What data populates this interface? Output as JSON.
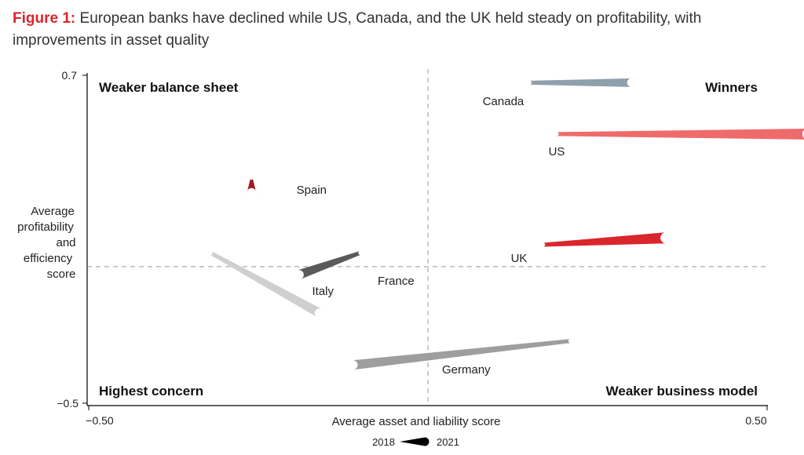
{
  "figure": {
    "prefix": "Figure 1:",
    "title": "European banks have declined while US, Canada, and the UK held steady on profitability, with improvements in asset quality"
  },
  "chart_data": {
    "type": "scatter",
    "subtype": "tapered-trajectory",
    "xlabel": "Average asset and liability score",
    "ylabel": "Average profitability and efficiency score",
    "ylabel_lines": [
      "Average",
      "profitability",
      "and",
      "efficiency",
      "score"
    ],
    "xlim": [
      -0.5,
      0.5
    ],
    "ylim": [
      -0.5,
      0.7
    ],
    "x_tick_labels": [
      "−0.50",
      "0.50"
    ],
    "y_tick_labels": [
      "0.7",
      "−0.5"
    ],
    "divider_x": 0.0,
    "divider_y": 0.0,
    "grid": false,
    "quadrants": {
      "top_left": "Weaker balance sheet",
      "top_right": "Winners",
      "bottom_left": "Highest concern",
      "bottom_right": "Weaker business model"
    },
    "legend": {
      "start_label": "2018",
      "end_label": "2021",
      "placement": "bottom-center"
    },
    "series": [
      {
        "name": "Canada",
        "color": "#8fa0ad",
        "x2018": 0.15,
        "y2018": 0.673,
        "x2021": 0.3,
        "y2021": 0.673
      },
      {
        "name": "US",
        "color": "#ef6b6b",
        "x2018": 0.19,
        "y2018": 0.485,
        "x2021": 0.56,
        "y2021": 0.485
      },
      {
        "name": "Spain",
        "color": "#9e1b22",
        "x2018": -0.26,
        "y2018": 0.322,
        "x2021": -0.26,
        "y2021": 0.27
      },
      {
        "name": "UK",
        "color": "#d9262c",
        "x2018": 0.17,
        "y2018": 0.08,
        "x2021": 0.35,
        "y2021": 0.105
      },
      {
        "name": "France",
        "color": "#5a5a5a",
        "x2018": -0.1,
        "y2018": 0.05,
        "x2021": -0.19,
        "y2021": -0.03
      },
      {
        "name": "Italy",
        "color": "#cfcfcf",
        "x2018": -0.32,
        "y2018": 0.05,
        "x2021": -0.16,
        "y2021": -0.17
      },
      {
        "name": "Germany",
        "color": "#9e9e9e",
        "x2018": 0.21,
        "y2018": -0.272,
        "x2021": -0.11,
        "y2021": -0.36
      }
    ]
  }
}
